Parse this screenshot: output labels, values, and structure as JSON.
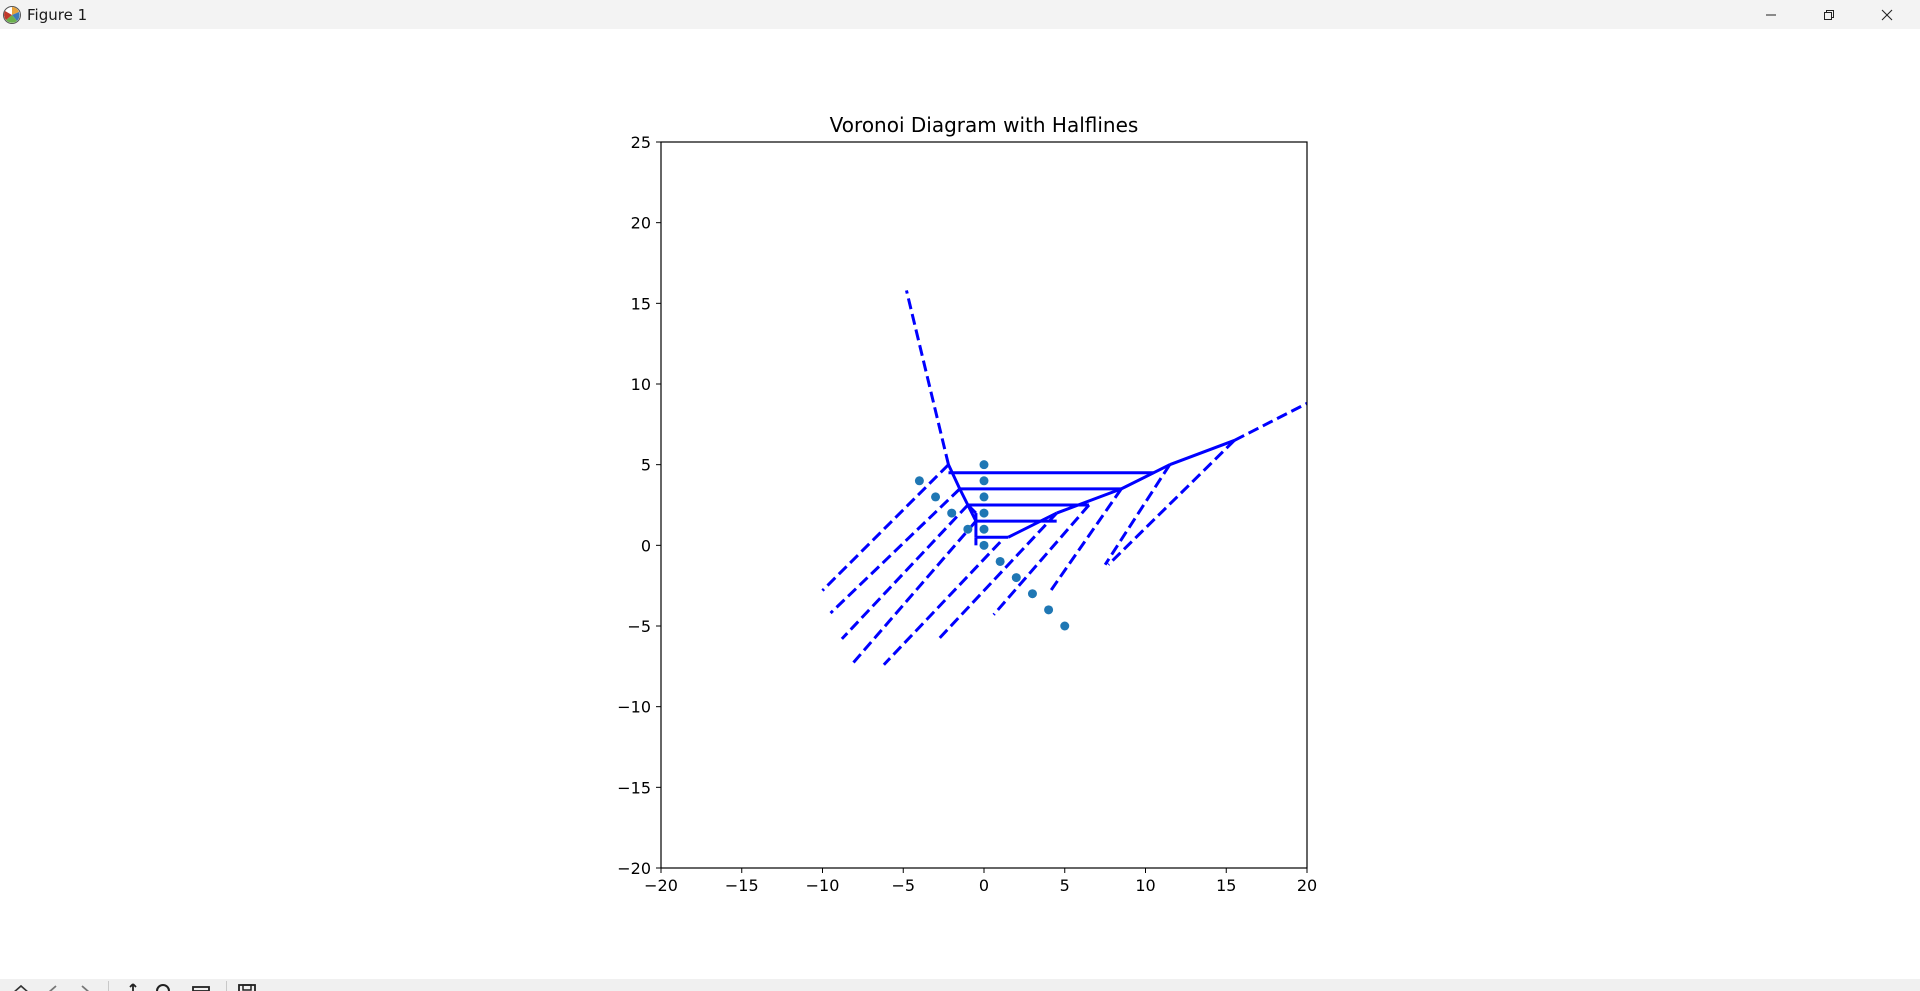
{
  "window": {
    "title": "Figure 1",
    "icons": [
      "matplotlib-logo-icon",
      "minimize-icon",
      "restore-icon",
      "close-icon"
    ]
  },
  "toolbar": {
    "icons": [
      "home-icon",
      "back-icon",
      "forward-icon",
      "pan-icon",
      "zoom-icon",
      "configure-subplots-icon",
      "save-icon"
    ]
  },
  "chart_data": {
    "type": "scatter",
    "title": "Voronoi Diagram with Halflines",
    "xlim": [
      -20,
      20
    ],
    "ylim": [
      -20,
      25
    ],
    "xticks": [
      -20,
      -15,
      -10,
      -5,
      0,
      5,
      10,
      15,
      20
    ],
    "yticks": [
      -20,
      -15,
      -10,
      -5,
      0,
      5,
      10,
      15,
      20,
      25
    ],
    "xtick_labels": [
      "−20",
      "−15",
      "−10",
      "−5",
      "0",
      "5",
      "10",
      "15",
      "20"
    ],
    "ytick_labels": [
      "−20",
      "−15",
      "−10",
      "−5",
      "0",
      "5",
      "10",
      "15",
      "20",
      "25"
    ],
    "grid": false,
    "aspect": "equal",
    "points": {
      "color": "#1f77b4",
      "x": [
        -4,
        -3,
        -2,
        -1,
        0,
        0,
        0,
        0,
        0,
        0,
        1,
        2,
        3,
        4,
        5
      ],
      "y": [
        4,
        3,
        2,
        1,
        5,
        4,
        3,
        2,
        1,
        0,
        -1,
        -2,
        -3,
        -4,
        -5
      ]
    },
    "edges_color": "#0000ff",
    "finite_edges": [
      [
        [
          -2.2,
          5.0
        ],
        [
          -1.5,
          3.5
        ]
      ],
      [
        [
          -1.5,
          3.5
        ],
        [
          -1.0,
          2.5
        ]
      ],
      [
        [
          -1.0,
          2.5
        ],
        [
          -0.5,
          1.5
        ]
      ],
      [
        [
          -1.0,
          2.5
        ],
        [
          -0.5,
          2.0
        ]
      ],
      [
        [
          -0.5,
          2.0
        ],
        [
          -0.5,
          0.5
        ]
      ],
      [
        [
          -0.5,
          0.5
        ],
        [
          -0.5,
          0.0
        ]
      ],
      [
        [
          -2.2,
          4.5
        ],
        [
          10.5,
          4.5
        ]
      ],
      [
        [
          -1.5,
          3.5
        ],
        [
          8.5,
          3.5
        ]
      ],
      [
        [
          -1.0,
          2.5
        ],
        [
          6.5,
          2.5
        ]
      ],
      [
        [
          -0.5,
          1.5
        ],
        [
          4.5,
          1.5
        ]
      ],
      [
        [
          -0.5,
          0.5
        ],
        [
          1.5,
          0.5
        ]
      ],
      [
        [
          1.5,
          0.5
        ],
        [
          4.5,
          2.0
        ]
      ],
      [
        [
          4.5,
          2.0
        ],
        [
          8.5,
          3.5
        ]
      ],
      [
        [
          8.5,
          3.5
        ],
        [
          11.5,
          5.0
        ]
      ],
      [
        [
          11.5,
          5.0
        ],
        [
          15.5,
          6.5
        ]
      ]
    ],
    "halflines": [
      [
        [
          -2.2,
          5.0
        ],
        [
          -4.8,
          15.8
        ]
      ],
      [
        [
          15.5,
          6.5
        ],
        [
          20.0,
          8.8
        ]
      ],
      [
        [
          -2.2,
          5.0
        ],
        [
          -10.0,
          -2.8
        ]
      ],
      [
        [
          -1.5,
          3.5
        ],
        [
          -9.5,
          -4.2
        ]
      ],
      [
        [
          -1.0,
          2.5
        ],
        [
          -8.8,
          -5.8
        ]
      ],
      [
        [
          -0.5,
          1.5
        ],
        [
          -8.2,
          -7.4
        ]
      ],
      [
        [
          1.0,
          0.2
        ],
        [
          -6.2,
          -7.4
        ]
      ],
      [
        [
          4.5,
          2.0
        ],
        [
          -2.8,
          -5.8
        ]
      ],
      [
        [
          6.5,
          2.5
        ],
        [
          0.6,
          -4.3
        ]
      ],
      [
        [
          8.5,
          3.5
        ],
        [
          4.0,
          -3.0
        ]
      ],
      [
        [
          11.5,
          5.0
        ],
        [
          7.5,
          -1.2
        ]
      ],
      [
        [
          15.5,
          6.5
        ],
        [
          7.7,
          -1.2
        ]
      ]
    ]
  }
}
